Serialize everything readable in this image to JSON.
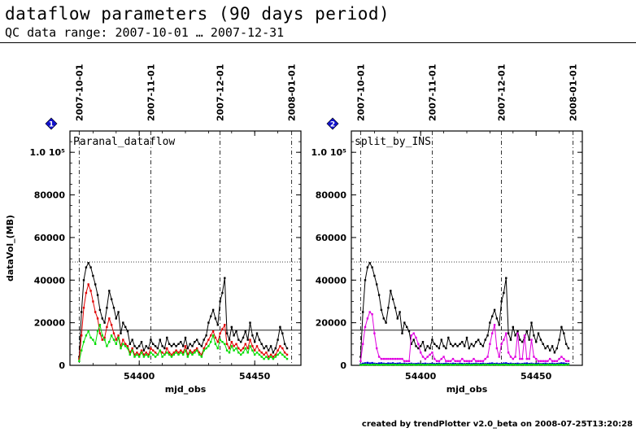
{
  "header": {
    "title": "dataflow parameters (90 days period)",
    "subtitle": "QC data range: 2007-10-01 … 2007-12-31"
  },
  "footer": "created by trendPlotter v2.0_beta on 2008-07-25T13:20:28",
  "chart_data": [
    {
      "type": "line",
      "panel_number": "1",
      "panel_label": "Paranal_dataflow",
      "xlabel": "mjd_obs",
      "ylabel": "dataVol_(MB)",
      "xlim": [
        54370,
        54470
      ],
      "ylim": [
        0,
        110000
      ],
      "x_ticks": [
        54400,
        54450
      ],
      "y_ticks": [
        "0",
        "20000",
        "40000",
        "60000",
        "80000",
        "1.0 10⁵"
      ],
      "y_tick_values": [
        0,
        20000,
        40000,
        60000,
        80000,
        100000
      ],
      "date_ticks": [
        "2007-10-01",
        "2007-11-01",
        "2007-12-01",
        "2008-01-01"
      ],
      "date_tick_x": [
        54374,
        54405,
        54435,
        54466
      ],
      "ref_lines": [
        {
          "y": 48500,
          "style": "dotted"
        },
        {
          "y": 16500,
          "style": "solid"
        }
      ],
      "series": [
        {
          "color": "#000000",
          "x_start": 54374,
          "values": [
            4000,
            25000,
            40000,
            46000,
            48000,
            46000,
            42000,
            38000,
            33000,
            26000,
            22000,
            20000,
            27000,
            35000,
            31000,
            27000,
            22000,
            25000,
            15000,
            20000,
            18000,
            16000,
            10000,
            12000,
            9000,
            8000,
            9000,
            11000,
            7000,
            9000,
            8000,
            12000,
            10000,
            9000,
            8000,
            12000,
            9000,
            8000,
            13000,
            10000,
            9000,
            10000,
            9000,
            10000,
            11000,
            9000,
            13000,
            8000,
            10000,
            9000,
            11000,
            12000,
            10000,
            9000,
            12000,
            14000,
            20000,
            23000,
            26000,
            22000,
            19000,
            30000,
            34000,
            41000,
            15000,
            12000,
            18000,
            14000,
            16000,
            12000,
            11000,
            13000,
            16000,
            12000,
            20000,
            14000,
            11000,
            15000,
            12000,
            10000,
            8000,
            9000,
            7000,
            9000,
            6000,
            8000,
            12000,
            18000,
            15000,
            10000,
            8000
          ]
        },
        {
          "color": "#e00000",
          "x_start": 54374,
          "values": [
            3000,
            14000,
            27000,
            34000,
            38000,
            35000,
            30000,
            25000,
            22000,
            15000,
            12000,
            13000,
            18000,
            22000,
            19000,
            15000,
            12000,
            14000,
            9000,
            12000,
            10000,
            9000,
            6000,
            8000,
            5000,
            6000,
            5000,
            7000,
            5000,
            6000,
            5000,
            8000,
            7000,
            6000,
            5000,
            7000,
            6000,
            5000,
            8000,
            6000,
            5000,
            6000,
            7000,
            6000,
            7000,
            6000,
            9000,
            5000,
            7000,
            6000,
            7000,
            8000,
            6000,
            5000,
            8000,
            10000,
            12000,
            14000,
            16000,
            13000,
            11000,
            15000,
            17000,
            19000,
            10000,
            8000,
            11000,
            9000,
            10000,
            8000,
            7000,
            8000,
            10000,
            8000,
            12000,
            9000,
            7000,
            9000,
            7000,
            6000,
            5000,
            6000,
            4000,
            5000,
            4000,
            5000,
            7000,
            9000,
            8000,
            6000,
            5000
          ]
        },
        {
          "color": "#00dd00",
          "x_start": 54374,
          "values": [
            2000,
            7000,
            11000,
            14000,
            16000,
            13000,
            12000,
            10000,
            16000,
            19000,
            14000,
            12000,
            9000,
            11000,
            14000,
            12000,
            10000,
            13000,
            8000,
            10000,
            9000,
            8000,
            5000,
            7000,
            4000,
            5000,
            4000,
            6000,
            4000,
            5000,
            4000,
            6000,
            5000,
            4000,
            5000,
            7000,
            4000,
            5000,
            6000,
            5000,
            4000,
            5000,
            6000,
            5000,
            6000,
            5000,
            7000,
            4000,
            6000,
            5000,
            6000,
            7000,
            5000,
            4000,
            7000,
            8000,
            9000,
            11000,
            14000,
            10000,
            8000,
            12000,
            11000,
            10000,
            7000,
            6000,
            9000,
            7000,
            8000,
            6000,
            5000,
            6000,
            8000,
            6000,
            9000,
            7000,
            5000,
            6000,
            5000,
            4000,
            3000,
            4000,
            3000,
            4000,
            3000,
            4000,
            5000,
            6000,
            5000,
            4000,
            3000
          ]
        }
      ]
    },
    {
      "type": "line",
      "panel_number": "2",
      "panel_label": "split_by_INS",
      "xlabel": "mjd_obs",
      "ylabel": "",
      "xlim": [
        54370,
        54470
      ],
      "ylim": [
        0,
        110000
      ],
      "x_ticks": [
        54400,
        54450
      ],
      "y_ticks": [
        "0",
        "20000",
        "40000",
        "60000",
        "80000",
        "1.0 10⁵"
      ],
      "y_tick_values": [
        0,
        20000,
        40000,
        60000,
        80000,
        100000
      ],
      "date_ticks": [
        "2007-10-01",
        "2007-11-01",
        "2007-12-01",
        "2008-01-01"
      ],
      "date_tick_x": [
        54374,
        54405,
        54435,
        54466
      ],
      "ref_lines": [
        {
          "y": 48500,
          "style": "dotted"
        },
        {
          "y": 16500,
          "style": "solid"
        }
      ],
      "series": [
        {
          "color": "#000000",
          "x_start": 54374,
          "values": [
            4000,
            25000,
            40000,
            46000,
            48000,
            46000,
            42000,
            38000,
            33000,
            26000,
            22000,
            20000,
            27000,
            35000,
            31000,
            27000,
            22000,
            25000,
            15000,
            20000,
            18000,
            16000,
            10000,
            12000,
            9000,
            8000,
            9000,
            11000,
            7000,
            9000,
            8000,
            12000,
            10000,
            9000,
            8000,
            12000,
            9000,
            8000,
            13000,
            10000,
            9000,
            10000,
            9000,
            10000,
            11000,
            9000,
            13000,
            8000,
            10000,
            9000,
            11000,
            12000,
            10000,
            9000,
            12000,
            14000,
            20000,
            23000,
            26000,
            22000,
            19000,
            30000,
            34000,
            41000,
            15000,
            12000,
            18000,
            14000,
            16000,
            12000,
            11000,
            13000,
            16000,
            12000,
            20000,
            14000,
            11000,
            15000,
            12000,
            10000,
            8000,
            9000,
            7000,
            9000,
            6000,
            8000,
            12000,
            18000,
            15000,
            10000,
            8000
          ]
        },
        {
          "color": "#e000e0",
          "x_start": 54374,
          "values": [
            2000,
            10000,
            18000,
            22000,
            25000,
            24000,
            15000,
            8000,
            4000,
            3000,
            3000,
            3000,
            3000,
            3000,
            3000,
            3000,
            3000,
            3000,
            3000,
            2000,
            2000,
            2000,
            14000,
            15000,
            13000,
            10000,
            6000,
            4000,
            3000,
            4000,
            5000,
            6000,
            3000,
            2000,
            2000,
            3000,
            4000,
            2000,
            2000,
            2000,
            3000,
            2000,
            2000,
            2000,
            3000,
            2000,
            2000,
            2000,
            2000,
            3000,
            2000,
            2000,
            2000,
            2000,
            3000,
            4000,
            10000,
            15000,
            19000,
            8000,
            4000,
            10000,
            12000,
            15000,
            6000,
            4000,
            3000,
            4000,
            15000,
            3000,
            3000,
            14000,
            3000,
            3000,
            12000,
            4000,
            3000,
            2000,
            2000,
            2000,
            2000,
            2000,
            3000,
            2000,
            2000,
            2000,
            3000,
            4000,
            3000,
            2000,
            2000
          ]
        },
        {
          "color": "#0000dd",
          "x_start": 54374,
          "values": [
            500,
            800,
            1000,
            1200,
            900,
            1100,
            800,
            700,
            900,
            1000,
            800,
            700,
            900,
            800,
            1000,
            700,
            800,
            900,
            700,
            800,
            600,
            700,
            800,
            600,
            700,
            800,
            600,
            700,
            800,
            600,
            700,
            800,
            600,
            700,
            800,
            600,
            700,
            800,
            700,
            600,
            800,
            700,
            600,
            800,
            700,
            600,
            700,
            800,
            600,
            700,
            800,
            600,
            700,
            800,
            600,
            700,
            800,
            900,
            700,
            800,
            600,
            700,
            900,
            1000,
            700,
            800,
            600,
            700,
            800,
            600,
            700,
            800,
            900,
            700,
            800,
            600,
            700,
            800,
            600,
            700,
            800,
            600,
            700,
            800,
            600,
            700,
            800,
            1000,
            900,
            700,
            600
          ]
        },
        {
          "color": "#00dd00",
          "x_start": 54374,
          "values": [
            200,
            300,
            400,
            300,
            200,
            300,
            400,
            300,
            200,
            300,
            400,
            300,
            200,
            300,
            400,
            300,
            200,
            300,
            400,
            300,
            200,
            300,
            400,
            300,
            200,
            300,
            400,
            300,
            200,
            300,
            400,
            300,
            200,
            300,
            400,
            300,
            200,
            300,
            400,
            300,
            200,
            300,
            400,
            300,
            200,
            300,
            400,
            300,
            200,
            300,
            400,
            300,
            200,
            300,
            400,
            300,
            200,
            300,
            400,
            300,
            200,
            300,
            400,
            300,
            200,
            300,
            400,
            300,
            200,
            300,
            400,
            300,
            200,
            300,
            400,
            300,
            200,
            300,
            400,
            300,
            200,
            300,
            400,
            300,
            200,
            300,
            400,
            300,
            200,
            300,
            400
          ]
        }
      ]
    }
  ]
}
